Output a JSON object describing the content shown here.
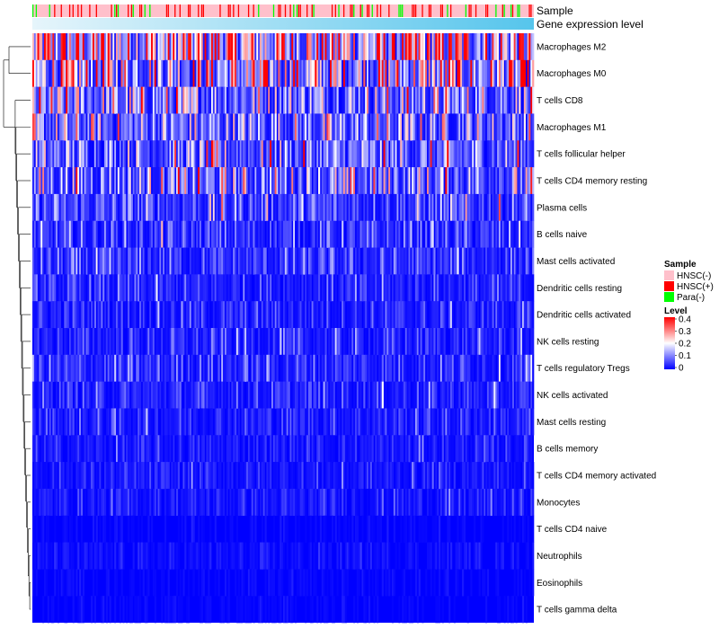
{
  "chart_data": {
    "type": "heatmap",
    "title": "",
    "annotation_tracks": [
      {
        "name": "Sample"
      },
      {
        "name": "Gene expression level"
      }
    ],
    "rows": [
      {
        "label": "Macrophages M2",
        "mean": 0.24
      },
      {
        "label": "Macrophages M0",
        "mean": 0.18
      },
      {
        "label": "T cells CD8",
        "mean": 0.12
      },
      {
        "label": "Macrophages M1",
        "mean": 0.1
      },
      {
        "label": "T cells follicular helper",
        "mean": 0.09
      },
      {
        "label": "T cells CD4 memory resting",
        "mean": 0.1
      },
      {
        "label": "Plasma cells",
        "mean": 0.06
      },
      {
        "label": "B cells naive",
        "mean": 0.04
      },
      {
        "label": "Mast cells activated",
        "mean": 0.04
      },
      {
        "label": "Dendritic cells resting",
        "mean": 0.03
      },
      {
        "label": "Dendritic cells activated",
        "mean": 0.03
      },
      {
        "label": "NK cells resting",
        "mean": 0.03
      },
      {
        "label": "T cells regulatory  Tregs",
        "mean": 0.04
      },
      {
        "label": "NK cells activated",
        "mean": 0.03
      },
      {
        "label": "Mast cells resting",
        "mean": 0.03
      },
      {
        "label": "B cells memory",
        "mean": 0.02
      },
      {
        "label": "T cells CD4 memory activated",
        "mean": 0.02
      },
      {
        "label": "Monocytes",
        "mean": 0.02
      },
      {
        "label": "T cells CD4 naive",
        "mean": 0.005
      },
      {
        "label": "Neutrophils",
        "mean": 0.01
      },
      {
        "label": "Eosinophils",
        "mean": 0.005
      },
      {
        "label": "T cells gamma delta",
        "mean": 0.005
      }
    ],
    "n_columns": 300,
    "legend": {
      "sample": {
        "title": "Sample",
        "entries": [
          {
            "label": "HNSC(-)",
            "color": "#FFC0CB"
          },
          {
            "label": "HNSC(+)",
            "color": "#FF0000"
          },
          {
            "label": "Para(-)",
            "color": "#00FF00"
          }
        ]
      },
      "level": {
        "title": "Level",
        "ticks": [
          "0.4",
          "0.3",
          "0.2",
          "0.1",
          "0"
        ],
        "range": [
          0,
          0.4
        ],
        "low_color": "#0000FF",
        "mid_color": "#FFFFFF",
        "high_color": "#FF0000"
      }
    },
    "gene_expression_colors": [
      "#E6F5FB",
      "#56C5EC"
    ]
  }
}
